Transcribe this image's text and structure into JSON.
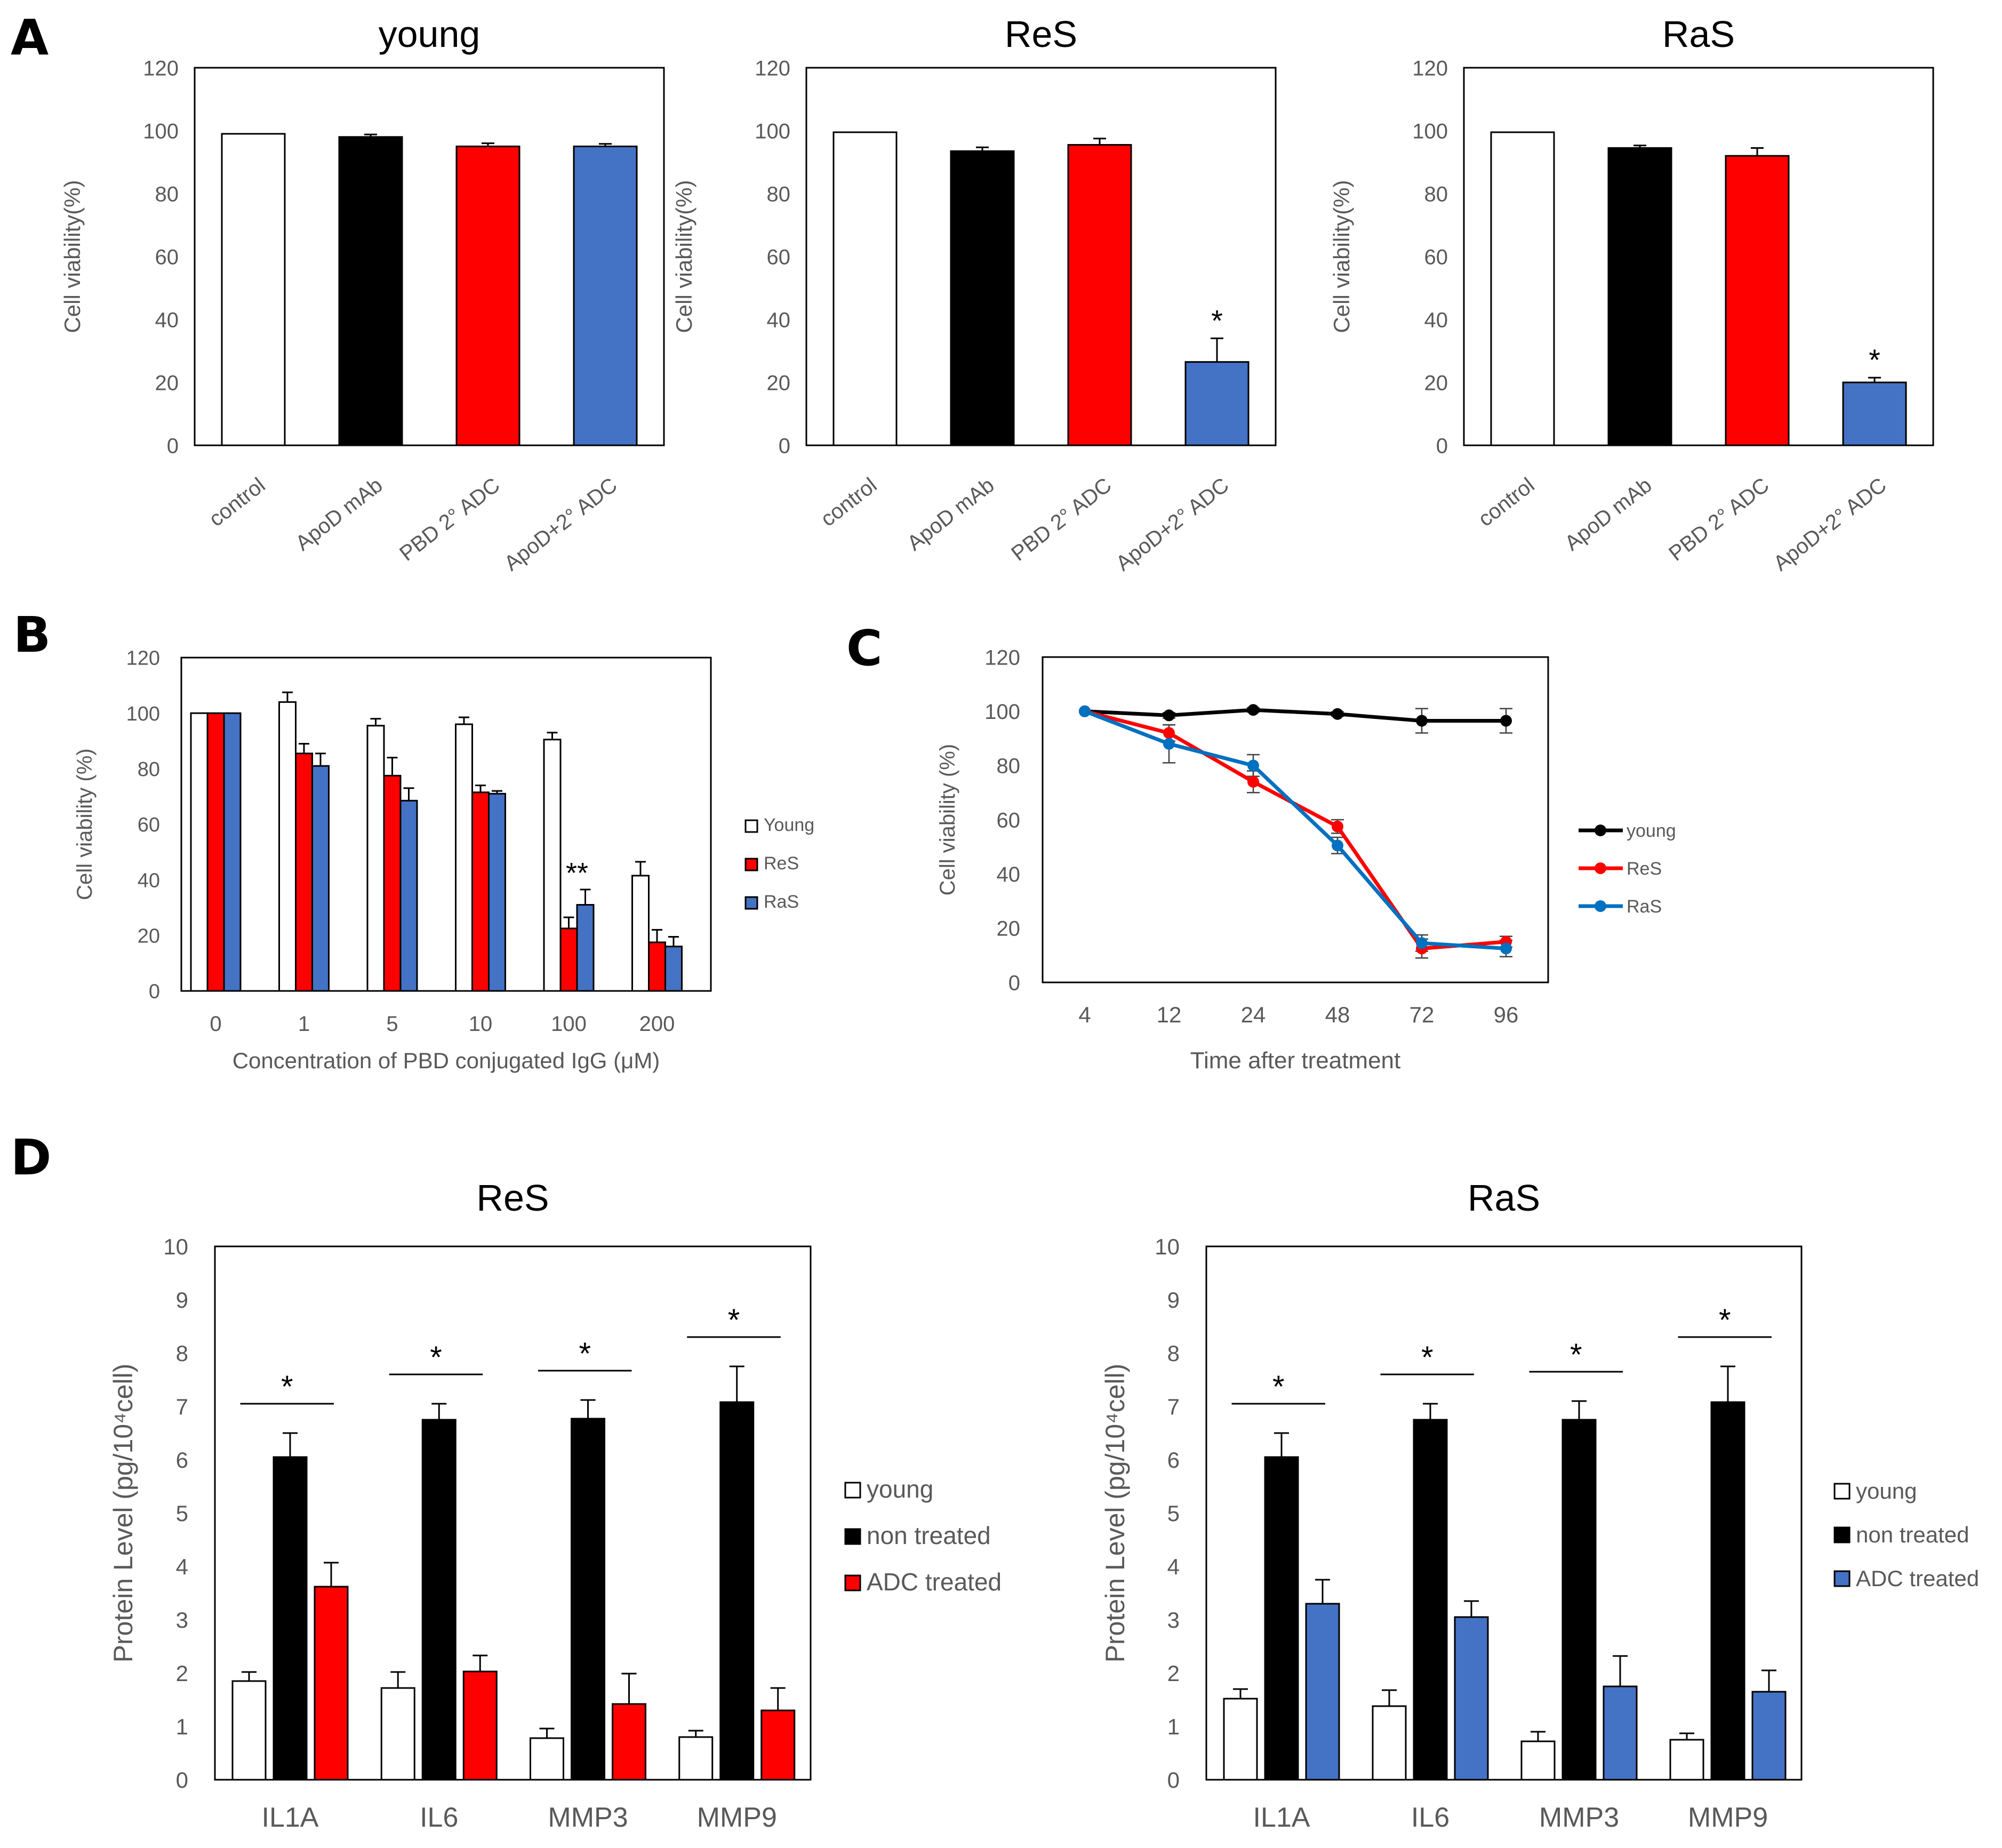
{
  "panels": {
    "A": "A",
    "B": "B",
    "C": "C",
    "D": "D"
  },
  "colors": {
    "young": "#ffffff",
    "black": "#000000",
    "red": "#ff0000",
    "blue": "#4472c4",
    "axis": "#000000",
    "text": "#595959"
  },
  "chart_data": [
    {
      "id": "A1",
      "type": "bar",
      "title": "young",
      "ylabel": "Cell viability(%)",
      "ylim": [
        0,
        120
      ],
      "yticks": [
        "0",
        "20",
        "40",
        "60",
        "80",
        "100",
        "120"
      ],
      "categories": [
        "control",
        "ApoD mAb",
        "PBD 2°  ADC",
        "ApoD+2°  ADC"
      ],
      "values": [
        99,
        98,
        95,
        95
      ],
      "errors": [
        0.4,
        0.8,
        1,
        0.8
      ],
      "colors": [
        "#ffffff",
        "#000000",
        "#ff0000",
        "#4472c4"
      ],
      "annotations": [
        "",
        "",
        "",
        ""
      ]
    },
    {
      "id": "A2",
      "type": "bar",
      "title": "ReS",
      "ylabel": "Cell viability(%)",
      "ylim": [
        0,
        120
      ],
      "yticks": [
        "0",
        "20",
        "40",
        "60",
        "80",
        "100",
        "120"
      ],
      "categories": [
        "control",
        "ApoD mAb",
        "PBD 2°  ADC",
        "ApoD+2°  ADC"
      ],
      "values": [
        99.5,
        93.5,
        95.5,
        26.5
      ],
      "errors": [
        0.3,
        1.2,
        2,
        7.5
      ],
      "colors": [
        "#ffffff",
        "#000000",
        "#ff0000",
        "#4472c4"
      ],
      "annotations": [
        "",
        "",
        "",
        "*"
      ]
    },
    {
      "id": "A3",
      "type": "bar",
      "title": "RaS",
      "ylabel": "Cell viability(%)",
      "ylim": [
        0,
        120
      ],
      "yticks": [
        "0",
        "20",
        "40",
        "60",
        "80",
        "100",
        "120"
      ],
      "categories": [
        "control",
        "ApoD mAb",
        "PBD 2°  ADC",
        "ApoD+2°  ADC"
      ],
      "values": [
        99.5,
        94.5,
        92,
        20
      ],
      "errors": [
        0.3,
        0.8,
        2.5,
        1.5
      ],
      "colors": [
        "#ffffff",
        "#000000",
        "#ff0000",
        "#4472c4"
      ],
      "annotations": [
        "",
        "",
        "",
        "*"
      ]
    },
    {
      "id": "B",
      "type": "bar",
      "title": "",
      "ylabel": "Cell viability (%)",
      "xlabel": "Concentration of PBD conjugated IgG (μM)",
      "ylim": [
        0,
        120
      ],
      "yticks": [
        "0",
        "20",
        "40",
        "60",
        "80",
        "100",
        "120"
      ],
      "categories": [
        "0",
        "1",
        "5",
        "10",
        "100",
        "200"
      ],
      "series": [
        {
          "name": "Young",
          "color": "#ffffff",
          "values": [
            100,
            104,
            95.5,
            96,
            90.5,
            41.5
          ],
          "errors": [
            0,
            3.5,
            2.5,
            2.5,
            2.5,
            5
          ]
        },
        {
          "name": "ReS",
          "color": "#ff0000",
          "values": [
            100,
            85.5,
            77.5,
            71.5,
            22.5,
            17.5
          ],
          "errors": [
            0,
            3.5,
            6.5,
            2.5,
            4,
            4.5
          ]
        },
        {
          "name": "RaS",
          "color": "#4472c4",
          "values": [
            100,
            81,
            68.5,
            71,
            31,
            16
          ],
          "errors": [
            0,
            4.5,
            4.5,
            1,
            5.5,
            3.5
          ]
        }
      ],
      "annotations": [
        {
          "category": "100",
          "text": "**"
        }
      ],
      "legend": "right"
    },
    {
      "id": "C",
      "type": "line",
      "title": "",
      "ylabel": "Cell viability (%)",
      "xlabel": "Time after treatment",
      "ylim": [
        0,
        120
      ],
      "yticks": [
        "0",
        "20",
        "40",
        "60",
        "80",
        "100",
        "120"
      ],
      "x": [
        "4",
        "12",
        "24",
        "48",
        "72",
        "96"
      ],
      "series": [
        {
          "name": "young",
          "color": "#000000",
          "values": [
            100,
            98.5,
            100.5,
            99,
            96.5,
            96.5
          ],
          "errors": [
            0,
            1,
            0.8,
            0.8,
            4.5,
            4.5
          ]
        },
        {
          "name": "ReS",
          "color": "#ff0000",
          "values": [
            100,
            92,
            74,
            57.5,
            12.5,
            15
          ],
          "errors": [
            0,
            3,
            4,
            2.5,
            3.5,
            2
          ]
        },
        {
          "name": "RaS",
          "color": "#0070c0",
          "values": [
            100,
            88,
            80,
            50.5,
            14.5,
            12.5
          ],
          "errors": [
            0,
            7,
            4,
            3,
            3,
            3
          ]
        }
      ],
      "legend": "right"
    },
    {
      "id": "D1",
      "type": "bar",
      "title": "ReS",
      "ylabel": "Protein Level (pg/10⁴cell)",
      "ylim": [
        0,
        10
      ],
      "yticks": [
        "0",
        "1",
        "2",
        "3",
        "4",
        "5",
        "6",
        "7",
        "8",
        "9",
        "10"
      ],
      "categories": [
        "IL1A",
        "IL6",
        "MMP3",
        "MMP9"
      ],
      "series": [
        {
          "name": "young",
          "color": "#ffffff",
          "values": [
            1.85,
            1.72,
            0.78,
            0.8
          ],
          "errors": [
            0.17,
            0.3,
            0.18,
            0.12
          ]
        },
        {
          "name": "non treated",
          "color": "#000000",
          "values": [
            6.05,
            6.75,
            6.77,
            7.08
          ],
          "errors": [
            0.45,
            0.3,
            0.35,
            0.67
          ]
        },
        {
          "name": "ADC treated",
          "color": "#ff0000",
          "values": [
            3.62,
            2.03,
            1.42,
            1.3
          ],
          "errors": [
            0.45,
            0.3,
            0.57,
            0.42
          ]
        }
      ],
      "annotations": [
        "*",
        "*",
        "*",
        "*"
      ],
      "legend": "right"
    },
    {
      "id": "D2",
      "type": "bar",
      "title": "RaS",
      "ylabel": "Protein Level (pg/10⁴cell)",
      "ylim": [
        0,
        10
      ],
      "yticks": [
        "0",
        "1",
        "2",
        "3",
        "4",
        "5",
        "6",
        "7",
        "8",
        "9",
        "10"
      ],
      "categories": [
        "IL1A",
        "IL6",
        "MMP3",
        "MMP9"
      ],
      "series": [
        {
          "name": "young",
          "color": "#ffffff",
          "values": [
            1.52,
            1.38,
            0.72,
            0.75
          ],
          "errors": [
            0.18,
            0.3,
            0.18,
            0.12
          ]
        },
        {
          "name": "non treated",
          "color": "#000000",
          "values": [
            6.05,
            6.75,
            6.75,
            7.08
          ],
          "errors": [
            0.45,
            0.3,
            0.35,
            0.67
          ]
        },
        {
          "name": "ADC treated",
          "color": "#4472c4",
          "values": [
            3.3,
            3.05,
            1.75,
            1.65
          ],
          "errors": [
            0.45,
            0.3,
            0.57,
            0.4
          ]
        }
      ],
      "annotations": [
        "*",
        "*",
        "*",
        "*"
      ],
      "legend": "right"
    }
  ]
}
